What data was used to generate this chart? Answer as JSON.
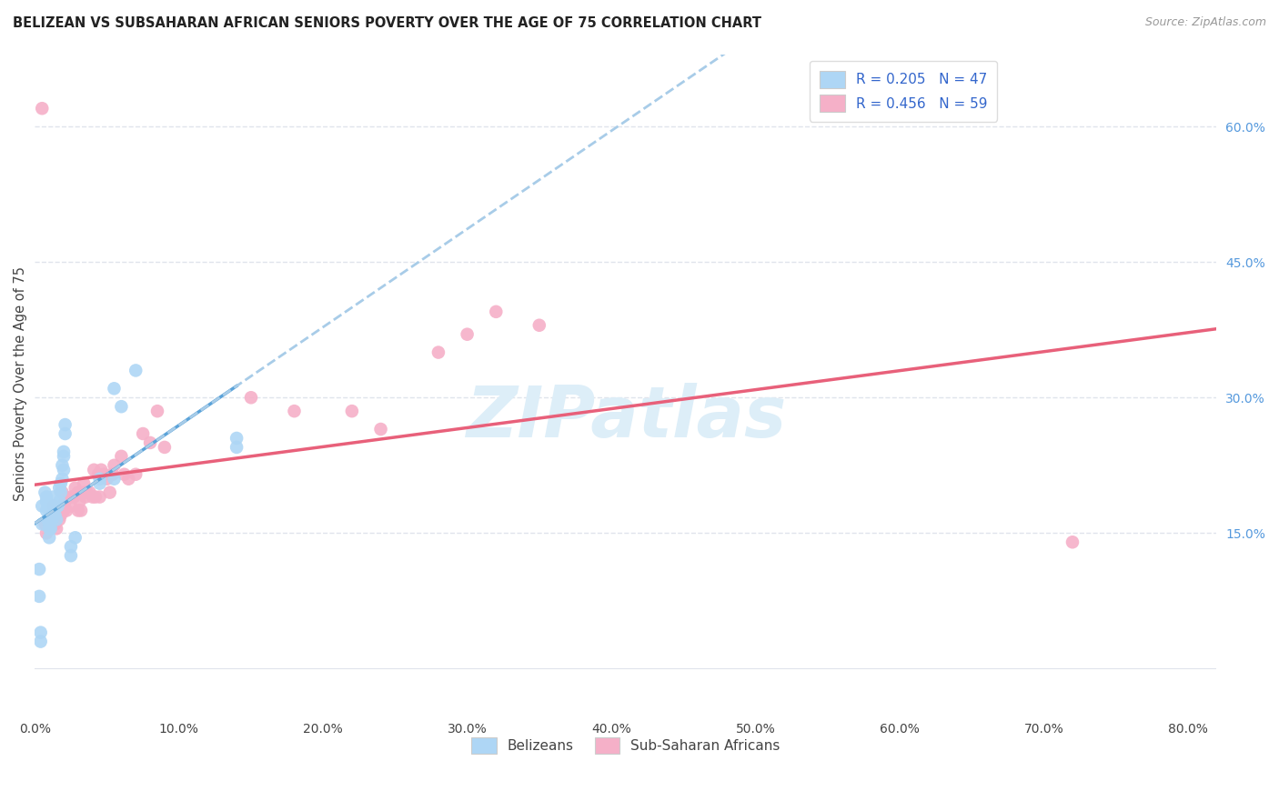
{
  "title": "BELIZEAN VS SUBSAHARAN AFRICAN SENIORS POVERTY OVER THE AGE OF 75 CORRELATION CHART",
  "source": "Source: ZipAtlas.com",
  "ylabel": "Seniors Poverty Over the Age of 75",
  "xlim": [
    0.0,
    0.82
  ],
  "ylim": [
    -0.05,
    0.68
  ],
  "belize_R": 0.205,
  "belize_N": 47,
  "subsaharan_R": 0.456,
  "subsaharan_N": 59,
  "belize_color": "#aed6f5",
  "belize_line_color": "#5ba3d9",
  "subsaharan_color": "#f5b0c8",
  "subsaharan_line_color": "#e8607a",
  "dashed_line_color": "#a8cce8",
  "watermark_color": "#ddeef8",
  "background_color": "#ffffff",
  "grid_color": "#e0e4ec",
  "belize_x": [
    0.003,
    0.003,
    0.004,
    0.004,
    0.005,
    0.005,
    0.007,
    0.008,
    0.008,
    0.008,
    0.009,
    0.009,
    0.01,
    0.01,
    0.01,
    0.01,
    0.011,
    0.011,
    0.012,
    0.012,
    0.013,
    0.013,
    0.014,
    0.015,
    0.016,
    0.017,
    0.017,
    0.018,
    0.018,
    0.019,
    0.019,
    0.02,
    0.02,
    0.02,
    0.021,
    0.021,
    0.025,
    0.025,
    0.028,
    0.045,
    0.045,
    0.055,
    0.055,
    0.06,
    0.07,
    0.14,
    0.14
  ],
  "belize_y": [
    0.11,
    0.08,
    0.04,
    0.03,
    0.16,
    0.18,
    0.195,
    0.19,
    0.185,
    0.175,
    0.18,
    0.165,
    0.175,
    0.16,
    0.155,
    0.145,
    0.17,
    0.155,
    0.18,
    0.165,
    0.175,
    0.19,
    0.17,
    0.165,
    0.18,
    0.185,
    0.2,
    0.195,
    0.205,
    0.21,
    0.225,
    0.22,
    0.235,
    0.24,
    0.26,
    0.27,
    0.135,
    0.125,
    0.145,
    0.21,
    0.205,
    0.21,
    0.31,
    0.29,
    0.33,
    0.255,
    0.245
  ],
  "subsaharan_x": [
    0.005,
    0.007,
    0.008,
    0.01,
    0.012,
    0.013,
    0.014,
    0.015,
    0.015,
    0.016,
    0.017,
    0.018,
    0.018,
    0.019,
    0.02,
    0.02,
    0.021,
    0.022,
    0.025,
    0.025,
    0.027,
    0.028,
    0.03,
    0.03,
    0.031,
    0.032,
    0.034,
    0.034,
    0.035,
    0.036,
    0.038,
    0.04,
    0.041,
    0.042,
    0.044,
    0.045,
    0.046,
    0.048,
    0.05,
    0.052,
    0.054,
    0.055,
    0.06,
    0.062,
    0.065,
    0.07,
    0.075,
    0.08,
    0.085,
    0.09,
    0.15,
    0.18,
    0.22,
    0.24,
    0.28,
    0.32,
    0.35,
    0.72,
    0.3
  ],
  "subsaharan_y": [
    0.62,
    0.16,
    0.15,
    0.16,
    0.17,
    0.18,
    0.16,
    0.175,
    0.155,
    0.17,
    0.165,
    0.175,
    0.17,
    0.195,
    0.175,
    0.18,
    0.185,
    0.175,
    0.19,
    0.18,
    0.19,
    0.2,
    0.195,
    0.175,
    0.185,
    0.175,
    0.195,
    0.205,
    0.19,
    0.195,
    0.195,
    0.19,
    0.22,
    0.19,
    0.215,
    0.19,
    0.22,
    0.215,
    0.21,
    0.195,
    0.215,
    0.225,
    0.235,
    0.215,
    0.21,
    0.215,
    0.26,
    0.25,
    0.285,
    0.245,
    0.3,
    0.285,
    0.285,
    0.265,
    0.35,
    0.395,
    0.38,
    0.14,
    0.37
  ],
  "right_ytick_vals": [
    0.6,
    0.45,
    0.3,
    0.15
  ],
  "right_ytick_labels": [
    "60.0%",
    "45.0%",
    "30.0%",
    "15.0%"
  ],
  "x_tick_vals": [
    0.0,
    0.1,
    0.2,
    0.3,
    0.4,
    0.5,
    0.6,
    0.7,
    0.8
  ],
  "x_tick_labels": [
    "0.0%",
    "10.0%",
    "20.0%",
    "30.0%",
    "40.0%",
    "50.0%",
    "60.0%",
    "70.0%",
    "80.0%"
  ]
}
